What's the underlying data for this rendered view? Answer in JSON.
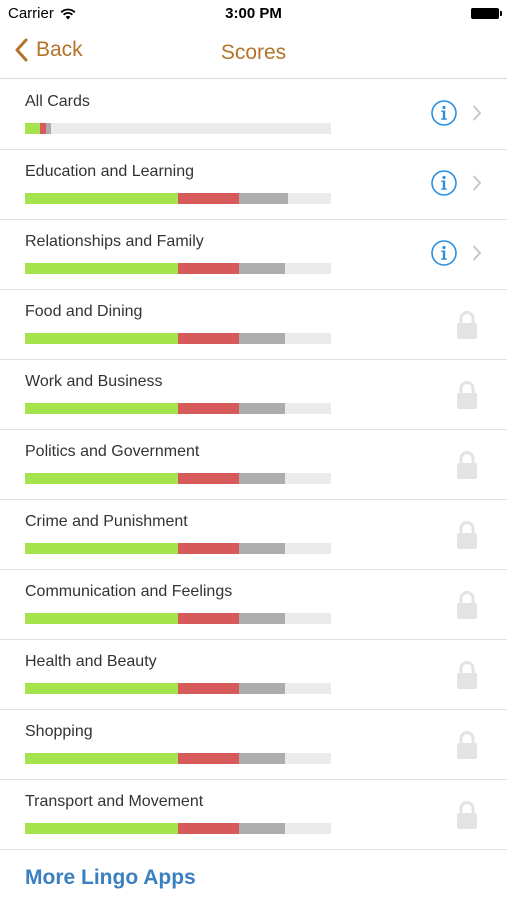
{
  "status_bar": {
    "carrier": "Carrier",
    "time": "3:00 PM"
  },
  "nav": {
    "back_label": "Back",
    "title": "Scores"
  },
  "colors": {
    "accent": "#b3742a",
    "link": "#3a7fc1",
    "correct": "#a4e34b",
    "wrong": "#d65a5a",
    "seen": "#adadad",
    "info": "#2b8fe0"
  },
  "rows": [
    {
      "title": "All Cards",
      "locked": false,
      "progress": {
        "green": 0.05,
        "red": 0.02,
        "gray": 0.015
      }
    },
    {
      "title": "Education and Learning",
      "locked": false,
      "progress": {
        "green": 0.5,
        "red": 0.2,
        "gray": 0.16
      }
    },
    {
      "title": "Relationships and Family",
      "locked": false,
      "progress": {
        "green": 0.5,
        "red": 0.2,
        "gray": 0.15
      }
    },
    {
      "title": "Food and Dining",
      "locked": true,
      "progress": {
        "green": 0.5,
        "red": 0.2,
        "gray": 0.15
      }
    },
    {
      "title": "Work and Business",
      "locked": true,
      "progress": {
        "green": 0.5,
        "red": 0.2,
        "gray": 0.15
      }
    },
    {
      "title": "Politics and Government",
      "locked": true,
      "progress": {
        "green": 0.5,
        "red": 0.2,
        "gray": 0.15
      }
    },
    {
      "title": "Crime and Punishment",
      "locked": true,
      "progress": {
        "green": 0.5,
        "red": 0.2,
        "gray": 0.15
      }
    },
    {
      "title": "Communication and Feelings",
      "locked": true,
      "progress": {
        "green": 0.5,
        "red": 0.2,
        "gray": 0.15
      }
    },
    {
      "title": "Health and Beauty",
      "locked": true,
      "progress": {
        "green": 0.5,
        "red": 0.2,
        "gray": 0.15
      }
    },
    {
      "title": "Shopping",
      "locked": true,
      "progress": {
        "green": 0.5,
        "red": 0.2,
        "gray": 0.15
      }
    },
    {
      "title": "Transport and Movement",
      "locked": true,
      "progress": {
        "green": 0.5,
        "red": 0.2,
        "gray": 0.15
      }
    }
  ],
  "icons": {
    "info": "info-icon",
    "chevron": "chevron-right-icon",
    "lock": "lock-icon",
    "back": "chevron-left-icon",
    "wifi": "wifi-icon",
    "battery": "battery-icon"
  },
  "footer": {
    "more_link": "More Lingo Apps"
  }
}
